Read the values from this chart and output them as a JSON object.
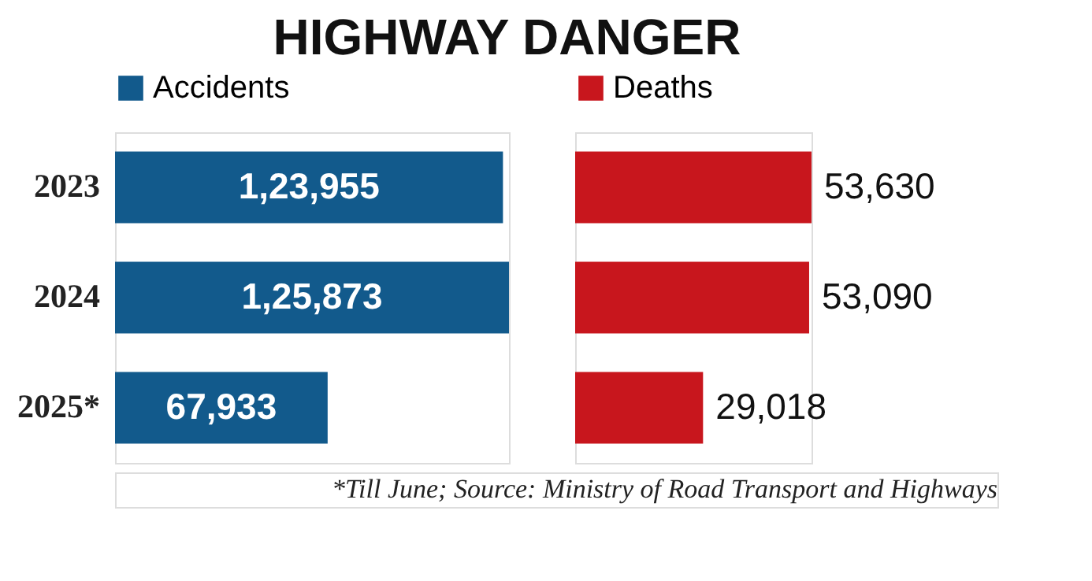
{
  "chart_data": [
    {
      "type": "bar",
      "title": "HIGHWAY DANGER",
      "orientation": "horizontal",
      "categories": [
        "2023",
        "2024",
        "2025*"
      ],
      "legend": "top left",
      "tick_labels": "y",
      "series": [
        {
          "name": "Accidents",
          "color": "#125a8c",
          "values": [
            123955,
            125873,
            67933
          ],
          "value_labels": [
            "1,23,955",
            "1,25,873",
            "67,933"
          ]
        }
      ]
    },
    {
      "type": "bar",
      "orientation": "horizontal",
      "categories": [
        null,
        null,
        null
      ],
      "legend": "top left",
      "tick_labels": false,
      "series": [
        {
          "name": "Deaths",
          "color": "#c8161d",
          "values": [
            53630,
            53090,
            29018
          ],
          "value_labels": [
            "53,630",
            "53,090",
            "29,018"
          ]
        }
      ],
      "annotations": [
        "*Till June; Source: Ministry of Road Transport and Highways"
      ]
    }
  ]
}
